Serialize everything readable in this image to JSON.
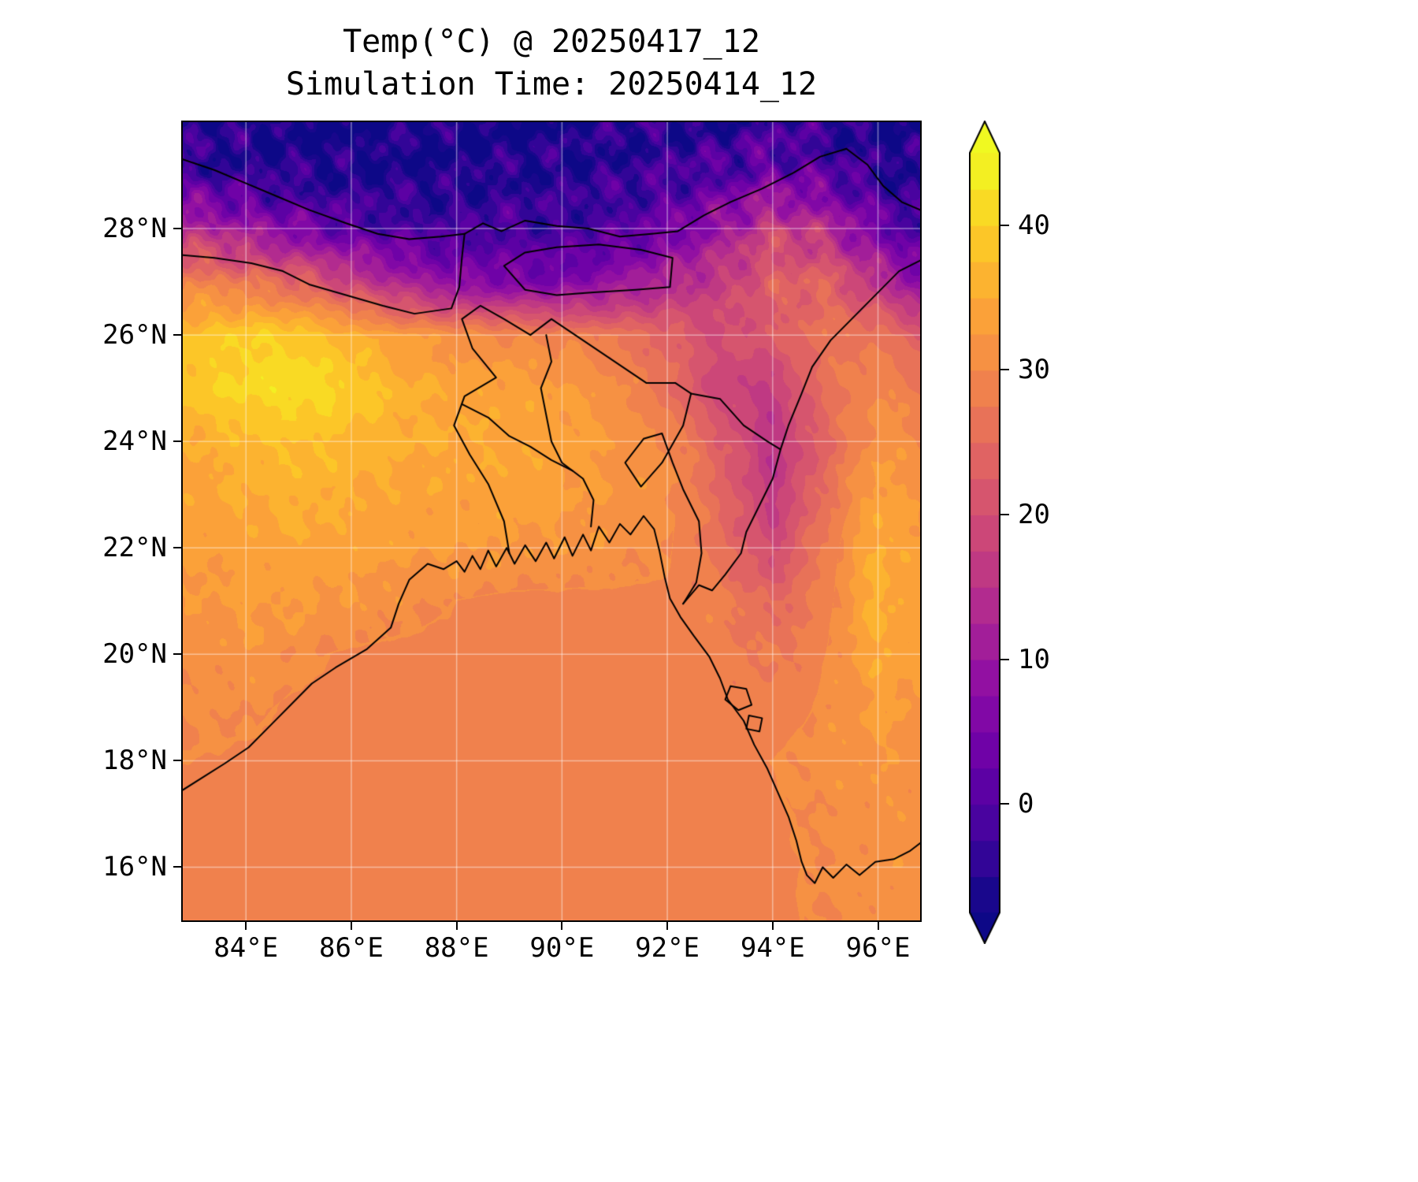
{
  "chart_data": {
    "type": "heatmap",
    "title": "Temp(°C) @ 20250417_12",
    "subtitle": "Simulation Time: 20250414_12",
    "variable": "Temp",
    "units": "°C",
    "grid_on": true,
    "lon_range": [
      82.8,
      96.8
    ],
    "lat_range": [
      15,
      30
    ],
    "x_ticks": [
      {
        "value": 84,
        "label": "84°E"
      },
      {
        "value": 86,
        "label": "86°E"
      },
      {
        "value": 88,
        "label": "88°E"
      },
      {
        "value": 90,
        "label": "90°E"
      },
      {
        "value": 92,
        "label": "92°E"
      },
      {
        "value": 94,
        "label": "94°E"
      },
      {
        "value": 96,
        "label": "96°E"
      }
    ],
    "y_ticks": [
      {
        "value": 16,
        "label": "16°N"
      },
      {
        "value": 18,
        "label": "18°N"
      },
      {
        "value": 20,
        "label": "20°N"
      },
      {
        "value": 22,
        "label": "22°N"
      },
      {
        "value": 24,
        "label": "24°N"
      },
      {
        "value": 26,
        "label": "26°N"
      },
      {
        "value": 28,
        "label": "28°N"
      }
    ],
    "colorbar": {
      "vmin": -7.5,
      "vmax": 45,
      "level_step": 2.5,
      "n_bands": 21,
      "extend": "both",
      "colormap": "plasma",
      "ticks": [
        {
          "value": 0,
          "label": "0"
        },
        {
          "value": 10,
          "label": "10"
        },
        {
          "value": 20,
          "label": "20"
        },
        {
          "value": 30,
          "label": "30"
        },
        {
          "value": 40,
          "label": "40"
        }
      ]
    },
    "colormap_anchors": [
      "#0d0887",
      "#41049d",
      "#6a00a8",
      "#8f0da4",
      "#b12a90",
      "#cc4778",
      "#e16462",
      "#f2844b",
      "#fca636",
      "#fcce25",
      "#f0f921"
    ],
    "gridlines": {
      "color": "rgba(255,255,255,0.45)",
      "lon_step": 2,
      "lat_step": 2
    },
    "grid": {
      "lons": [
        83,
        84,
        85,
        86,
        87,
        88,
        89,
        90,
        91,
        92,
        93,
        94,
        95,
        96,
        97
      ],
      "lats": [
        30,
        29,
        28,
        27,
        26,
        25,
        24,
        23,
        22,
        21,
        20,
        19,
        18,
        17,
        16,
        15
      ],
      "temps_c": [
        [
          -6,
          -7,
          -8,
          -8,
          -7,
          -8,
          -8,
          -7,
          -6,
          -5,
          -6,
          -3,
          -5,
          -7,
          -8
        ],
        [
          -2,
          -4,
          -5,
          -6,
          -6,
          -6,
          -5,
          -5,
          -4,
          -2,
          0,
          4,
          1,
          -4,
          -6
        ],
        [
          14,
          10,
          5,
          1,
          -1,
          -2,
          -1,
          -2,
          0,
          4,
          10,
          18,
          14,
          4,
          -3
        ],
        [
          29,
          27,
          24,
          18,
          12,
          7,
          6,
          5,
          9,
          13,
          17,
          23,
          24,
          15,
          6
        ],
        [
          38,
          40,
          39,
          36,
          33,
          31,
          30,
          29,
          27,
          24,
          20,
          22,
          27,
          27,
          22
        ],
        [
          39,
          41,
          42,
          40,
          36,
          34,
          34,
          33,
          31,
          26,
          18,
          17,
          26,
          30,
          27
        ],
        [
          35,
          37,
          38,
          37,
          35.5,
          35,
          34.5,
          34,
          32,
          30,
          23,
          15,
          24,
          32,
          30
        ],
        [
          34,
          35,
          36,
          35,
          34,
          34,
          34,
          33,
          32,
          31,
          25,
          16,
          26,
          34,
          31
        ],
        [
          33,
          34,
          34.5,
          34,
          33,
          33,
          32.5,
          32,
          31.5,
          30.5,
          26,
          19,
          28,
          36,
          32
        ],
        [
          32,
          33,
          33,
          32,
          31,
          30,
          29.5,
          29.5,
          29.5,
          29.5,
          28.5,
          24,
          29,
          36,
          32
        ],
        [
          31,
          32,
          30.5,
          29.7,
          29.5,
          29.5,
          29.5,
          29.5,
          29.5,
          29.5,
          29,
          27,
          30,
          35,
          33
        ],
        [
          30.5,
          30.5,
          29.7,
          29.5,
          29.5,
          29.5,
          29.5,
          29.5,
          29.5,
          29.5,
          29.4,
          28.5,
          30.5,
          33,
          32
        ],
        [
          30,
          29.7,
          29.5,
          29.5,
          29.5,
          29.5,
          29.5,
          29.5,
          29.5,
          29.5,
          29.5,
          30,
          31.5,
          32,
          31
        ],
        [
          29.5,
          29.5,
          29.5,
          29.5,
          29.5,
          29.5,
          29.5,
          29.5,
          29.5,
          29.5,
          29.5,
          29.8,
          30.5,
          31.5,
          31
        ],
        [
          29.5,
          29.5,
          29.5,
          29.5,
          29.5,
          29.5,
          29.5,
          29.5,
          29.5,
          29.5,
          29.5,
          29.5,
          30.5,
          31.5,
          31
        ],
        [
          29.5,
          29.5,
          29.5,
          29.5,
          29.5,
          29.5,
          29.5,
          29.5,
          29.5,
          29.5,
          29.5,
          29.5,
          30.5,
          31,
          31
        ]
      ]
    },
    "overlays": {
      "stroke": "#000000",
      "lines": [
        [
          [
            82.8,
            17.45
          ],
          [
            83.2,
            17.7
          ],
          [
            83.6,
            17.95
          ],
          [
            84.05,
            18.25
          ],
          [
            84.5,
            18.7
          ],
          [
            84.85,
            19.05
          ],
          [
            85.25,
            19.45
          ],
          [
            85.7,
            19.75
          ],
          [
            86.3,
            20.1
          ],
          [
            86.75,
            20.5
          ],
          [
            86.9,
            20.95
          ],
          [
            87.1,
            21.4
          ],
          [
            87.45,
            21.7
          ],
          [
            87.75,
            21.6
          ],
          [
            88.0,
            21.75
          ],
          [
            88.15,
            21.55
          ],
          [
            88.3,
            21.85
          ],
          [
            88.45,
            21.6
          ],
          [
            88.6,
            21.95
          ],
          [
            88.75,
            21.65
          ],
          [
            88.95,
            22.0
          ],
          [
            89.1,
            21.7
          ],
          [
            89.3,
            22.05
          ],
          [
            89.5,
            21.75
          ],
          [
            89.7,
            22.1
          ],
          [
            89.85,
            21.8
          ],
          [
            90.05,
            22.2
          ],
          [
            90.2,
            21.85
          ],
          [
            90.4,
            22.25
          ],
          [
            90.55,
            21.95
          ],
          [
            90.7,
            22.4
          ],
          [
            90.9,
            22.1
          ],
          [
            91.1,
            22.45
          ],
          [
            91.3,
            22.25
          ],
          [
            91.55,
            22.6
          ],
          [
            91.75,
            22.35
          ],
          [
            91.85,
            21.95
          ],
          [
            91.95,
            21.45
          ],
          [
            92.05,
            21.05
          ],
          [
            92.25,
            20.7
          ],
          [
            92.5,
            20.35
          ],
          [
            92.8,
            19.95
          ],
          [
            93.0,
            19.55
          ],
          [
            93.15,
            19.15
          ],
          [
            93.45,
            18.75
          ],
          [
            93.65,
            18.3
          ],
          [
            93.9,
            17.85
          ],
          [
            94.1,
            17.4
          ],
          [
            94.3,
            16.95
          ],
          [
            94.45,
            16.5
          ],
          [
            94.55,
            16.1
          ],
          [
            94.65,
            15.85
          ],
          [
            94.8,
            15.7
          ],
          [
            94.95,
            16.0
          ],
          [
            95.15,
            15.8
          ],
          [
            95.4,
            16.05
          ],
          [
            95.65,
            15.85
          ],
          [
            95.95,
            16.1
          ],
          [
            96.3,
            16.15
          ],
          [
            96.6,
            16.3
          ],
          [
            96.8,
            16.45
          ]
        ],
        [
          [
            82.8,
            29.3
          ],
          [
            83.4,
            29.1
          ],
          [
            84.0,
            28.85
          ],
          [
            84.6,
            28.6
          ],
          [
            85.2,
            28.35
          ],
          [
            85.9,
            28.1
          ],
          [
            86.5,
            27.9
          ],
          [
            87.1,
            27.8
          ],
          [
            87.7,
            27.85
          ],
          [
            88.15,
            27.9
          ],
          [
            88.5,
            28.1
          ],
          [
            88.85,
            27.95
          ],
          [
            89.3,
            28.15
          ],
          [
            89.9,
            28.05
          ],
          [
            90.5,
            28.0
          ],
          [
            91.1,
            27.85
          ],
          [
            91.7,
            27.9
          ],
          [
            92.2,
            27.95
          ],
          [
            92.7,
            28.25
          ],
          [
            93.2,
            28.5
          ],
          [
            93.8,
            28.75
          ],
          [
            94.4,
            29.05
          ],
          [
            94.9,
            29.35
          ],
          [
            95.4,
            29.5
          ],
          [
            95.8,
            29.2
          ],
          [
            96.1,
            28.8
          ],
          [
            96.45,
            28.5
          ],
          [
            96.8,
            28.35
          ]
        ],
        [
          [
            82.8,
            27.5
          ],
          [
            83.4,
            27.45
          ],
          [
            84.1,
            27.35
          ],
          [
            84.7,
            27.2
          ],
          [
            85.2,
            26.95
          ],
          [
            85.9,
            26.75
          ],
          [
            86.6,
            26.55
          ],
          [
            87.2,
            26.4
          ],
          [
            87.9,
            26.5
          ],
          [
            88.05,
            26.9
          ],
          [
            88.1,
            27.45
          ],
          [
            88.15,
            27.9
          ]
        ],
        [
          [
            88.9,
            27.3
          ],
          [
            89.3,
            26.85
          ],
          [
            89.9,
            26.75
          ],
          [
            90.6,
            26.8
          ],
          [
            91.4,
            26.85
          ],
          [
            92.05,
            26.9
          ],
          [
            92.1,
            27.45
          ],
          [
            91.5,
            27.6
          ],
          [
            90.7,
            27.7
          ],
          [
            89.9,
            27.65
          ],
          [
            89.3,
            27.55
          ],
          [
            88.9,
            27.3
          ]
        ],
        [
          [
            89.0,
            21.9
          ],
          [
            88.9,
            22.5
          ],
          [
            88.6,
            23.2
          ],
          [
            88.25,
            23.75
          ],
          [
            87.95,
            24.3
          ],
          [
            88.15,
            24.85
          ],
          [
            88.75,
            25.2
          ],
          [
            88.3,
            25.75
          ],
          [
            88.1,
            26.3
          ],
          [
            88.45,
            26.55
          ],
          [
            88.9,
            26.3
          ],
          [
            89.4,
            26.0
          ],
          [
            89.8,
            26.3
          ],
          [
            90.4,
            25.9
          ],
          [
            91.0,
            25.5
          ],
          [
            91.6,
            25.1
          ],
          [
            92.15,
            25.1
          ],
          [
            92.45,
            24.9
          ],
          [
            92.3,
            24.3
          ],
          [
            91.9,
            23.6
          ],
          [
            91.5,
            23.15
          ],
          [
            91.2,
            23.6
          ],
          [
            91.55,
            24.05
          ],
          [
            91.9,
            24.15
          ],
          [
            92.1,
            23.6
          ],
          [
            92.3,
            23.1
          ],
          [
            92.6,
            22.5
          ],
          [
            92.65,
            21.9
          ],
          [
            92.55,
            21.35
          ],
          [
            92.3,
            20.95
          ]
        ],
        [
          [
            92.45,
            24.9
          ],
          [
            93.0,
            24.8
          ],
          [
            93.45,
            24.3
          ],
          [
            93.9,
            24.0
          ],
          [
            94.15,
            23.85
          ],
          [
            94.3,
            24.3
          ],
          [
            94.55,
            24.9
          ],
          [
            94.75,
            25.4
          ],
          [
            95.1,
            25.9
          ],
          [
            95.5,
            26.3
          ],
          [
            96.0,
            26.8
          ],
          [
            96.4,
            27.2
          ],
          [
            96.8,
            27.4
          ]
        ],
        [
          [
            94.15,
            23.85
          ],
          [
            94.0,
            23.3
          ],
          [
            93.75,
            22.8
          ],
          [
            93.5,
            22.3
          ],
          [
            93.4,
            21.9
          ],
          [
            93.1,
            21.5
          ],
          [
            92.85,
            21.2
          ],
          [
            92.6,
            21.3
          ],
          [
            92.3,
            20.95
          ]
        ],
        [
          [
            89.7,
            26.0
          ],
          [
            89.8,
            25.5
          ],
          [
            89.6,
            25.0
          ],
          [
            89.7,
            24.5
          ],
          [
            89.8,
            24.0
          ],
          [
            90.0,
            23.6
          ],
          [
            90.4,
            23.3
          ],
          [
            90.6,
            22.9
          ],
          [
            90.55,
            22.4
          ]
        ],
        [
          [
            88.1,
            24.7
          ],
          [
            88.6,
            24.45
          ],
          [
            89.0,
            24.1
          ],
          [
            89.4,
            23.9
          ],
          [
            89.8,
            23.65
          ],
          [
            90.2,
            23.45
          ]
        ],
        [
          [
            93.2,
            19.4
          ],
          [
            93.5,
            19.35
          ],
          [
            93.6,
            19.05
          ],
          [
            93.35,
            18.95
          ],
          [
            93.1,
            19.15
          ],
          [
            93.2,
            19.4
          ]
        ],
        [
          [
            93.55,
            18.85
          ],
          [
            93.8,
            18.8
          ],
          [
            93.75,
            18.55
          ],
          [
            93.5,
            18.6
          ],
          [
            93.55,
            18.85
          ]
        ]
      ]
    }
  }
}
